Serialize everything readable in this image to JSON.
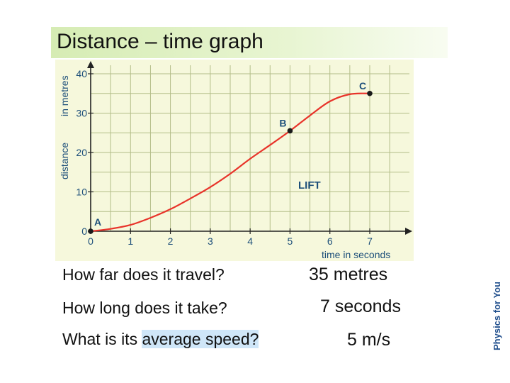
{
  "title": "Distance – time  graph",
  "chart_data": {
    "type": "line",
    "xlabel": "time in seconds",
    "ylabel_top": "in metres",
    "ylabel_bottom": "distance",
    "xlim": [
      0,
      7
    ],
    "ylim": [
      0,
      40
    ],
    "x_ticks": [
      0,
      1,
      2,
      3,
      4,
      5,
      6,
      7
    ],
    "y_ticks": [
      0,
      10,
      20,
      30,
      40
    ],
    "grid": true,
    "series": [
      {
        "name": "LIFT",
        "color": "#e8332a",
        "x": [
          0,
          0.5,
          1,
          1.5,
          2,
          2.5,
          3,
          3.5,
          4,
          4.5,
          5,
          5.5,
          6,
          6.5,
          7
        ],
        "y": [
          0,
          0.6,
          1.6,
          3.4,
          5.6,
          8.3,
          11.2,
          14.6,
          18.4,
          21.9,
          25.5,
          29.4,
          33.0,
          34.8,
          35
        ]
      }
    ],
    "points": [
      {
        "label": "A",
        "x": 0,
        "y": 0
      },
      {
        "label": "B",
        "x": 5,
        "y": 25.5
      },
      {
        "label": "C",
        "x": 7,
        "y": 35
      }
    ],
    "annotation": "LIFT"
  },
  "questions": [
    {
      "q": "How far does it travel?",
      "a": "35 metres"
    },
    {
      "q": "How long does it take?",
      "a": "7 seconds"
    },
    {
      "q_prefix": "What is its ",
      "q_highlight": "average speed?",
      "a": "5 m/s"
    }
  ],
  "logo_text": "Physics for You",
  "colors": {
    "curve": "#e8332a",
    "grid": "#b3bd88",
    "plot_bg": "#f6f8dc",
    "label": "#1d4f7a",
    "highlight": "#cfe6f8"
  }
}
